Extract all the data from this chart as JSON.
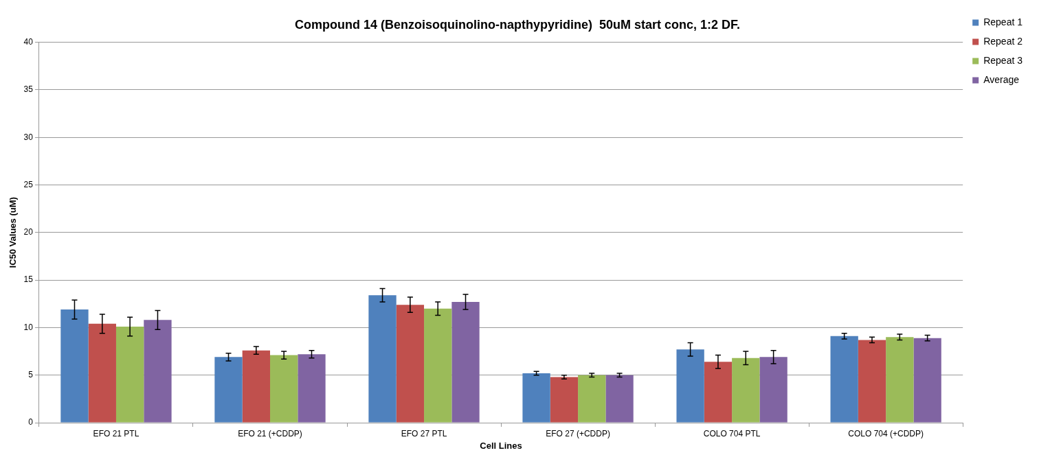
{
  "chart_data": {
    "type": "bar",
    "title": "Compound 14 (Benzoisoquinolino-napthypyridine)  50uM start conc, 1:2 DF.",
    "xlabel": "Cell Lines",
    "ylabel": "IC50 Values (uM)",
    "categories": [
      "EFO 21 PTL",
      "EFO 21 (+CDDP)",
      "EFO 27 PTL",
      "EFO 27 (+CDDP)",
      "COLO 704 PTL",
      "COLO 704 (+CDDP)"
    ],
    "series": [
      {
        "name": "Repeat 1",
        "color": "#4f81bd",
        "values": [
          11.9,
          6.9,
          13.4,
          5.2,
          7.7,
          9.1
        ],
        "errors": [
          1.0,
          0.4,
          0.7,
          0.2,
          0.7,
          0.3
        ]
      },
      {
        "name": "Repeat 2",
        "color": "#c0504d",
        "values": [
          10.4,
          7.6,
          12.4,
          4.8,
          6.4,
          8.7
        ],
        "errors": [
          1.0,
          0.4,
          0.8,
          0.2,
          0.7,
          0.3
        ]
      },
      {
        "name": "Repeat 3",
        "color": "#9bbb59",
        "values": [
          10.1,
          7.1,
          12.0,
          5.0,
          6.8,
          9.0
        ],
        "errors": [
          1.0,
          0.4,
          0.7,
          0.2,
          0.7,
          0.3
        ]
      },
      {
        "name": "Average",
        "color": "#8064a2",
        "values": [
          10.8,
          7.2,
          12.7,
          5.0,
          6.9,
          8.9
        ],
        "errors": [
          1.0,
          0.4,
          0.8,
          0.2,
          0.7,
          0.3
        ]
      }
    ],
    "ylim": [
      0,
      40
    ],
    "yticks": [
      0,
      5,
      10,
      15,
      20,
      25,
      30,
      35,
      40
    ],
    "grid": "y",
    "legend": "top right"
  }
}
